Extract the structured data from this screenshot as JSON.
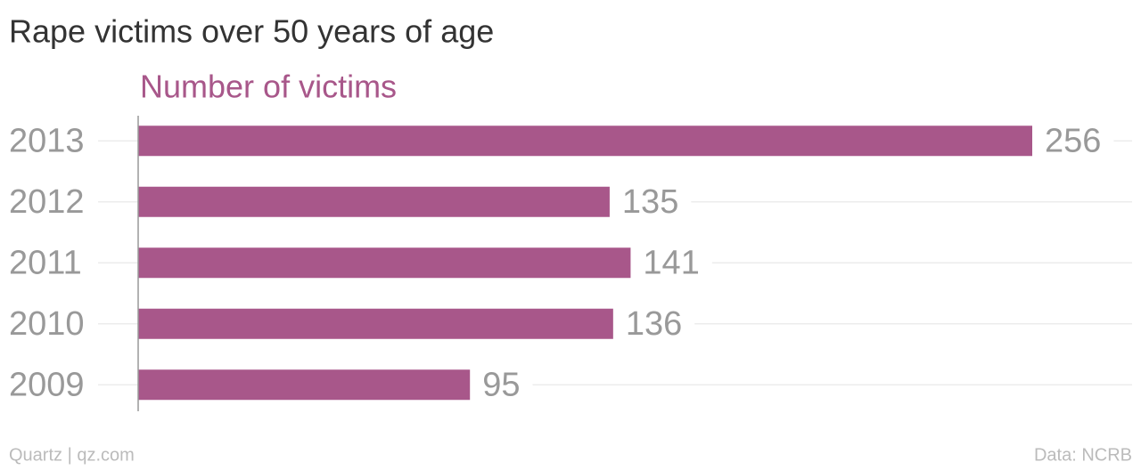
{
  "chart_data": {
    "type": "bar",
    "orientation": "horizontal",
    "title": "Rape victims over 50 years of age",
    "subtitle": "Number of victims",
    "categories": [
      "2013",
      "2012",
      "2011",
      "2010",
      "2009"
    ],
    "values": [
      256,
      135,
      141,
      136,
      95
    ],
    "color": "#a8578a",
    "xlim": [
      0,
      256
    ],
    "credit": "Quartz | qz.com",
    "source": "Data: NCRB"
  }
}
